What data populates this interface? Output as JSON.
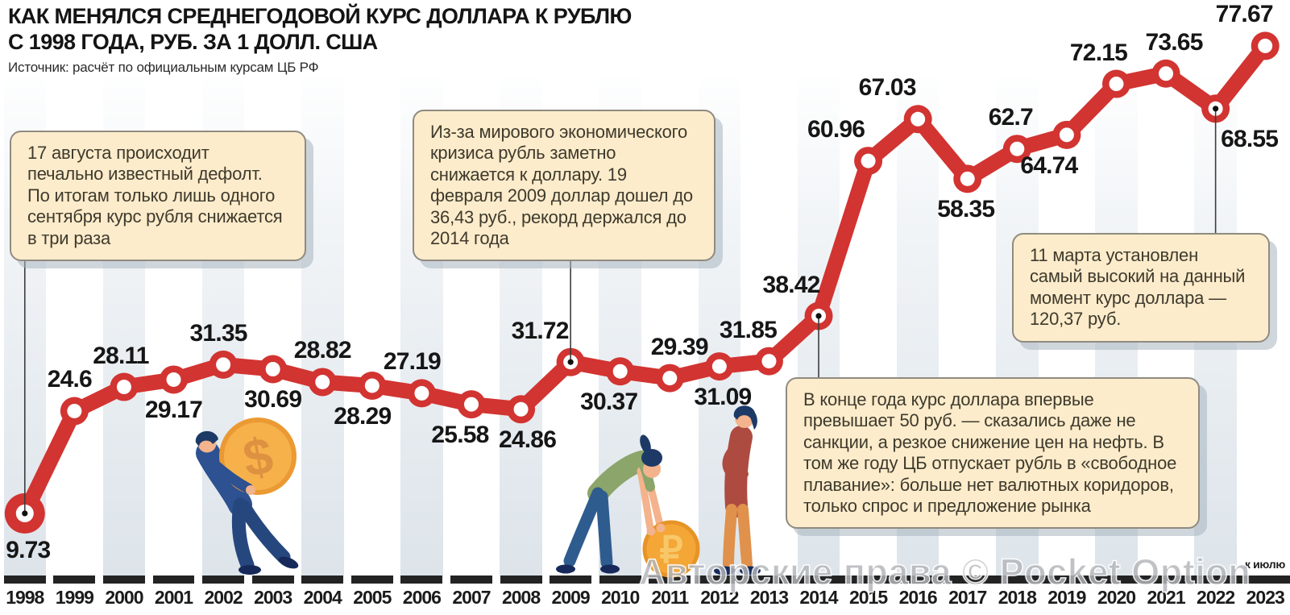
{
  "header": {
    "title_line1": "КАК МЕНЯЛСЯ СРЕДНЕГОДОВОЙ КУРС ДОЛЛАРА К РУБЛЮ",
    "title_line2": "С 1998 ГОДА, РУБ. ЗА 1 ДОЛЛ. США",
    "source": "Источник: расчёт по официальным курсам ЦБ РФ"
  },
  "chart_data": {
    "type": "line",
    "title": "Как менялся среднегодовой курс доллара к рублю с 1998 года, руб. за 1 долл. США",
    "categories": [
      "1998",
      "1999",
      "2000",
      "2001",
      "2002",
      "2003",
      "2004",
      "2005",
      "2006",
      "2007",
      "2008",
      "2009",
      "2010",
      "2011",
      "2012",
      "2013",
      "2014",
      "2015",
      "2016",
      "2017",
      "2018",
      "2019",
      "2020",
      "2021",
      "2022",
      "2023"
    ],
    "values": [
      9.73,
      24.6,
      28.11,
      29.17,
      31.35,
      30.69,
      28.82,
      28.29,
      27.19,
      25.58,
      24.86,
      31.72,
      30.37,
      29.39,
      31.09,
      31.85,
      38.42,
      60.96,
      67.03,
      58.35,
      62.7,
      64.74,
      72.15,
      73.65,
      68.55,
      77.67
    ],
    "labels": [
      "9.73",
      "24.6",
      "28.11",
      "29.17",
      "31.35",
      "30.69",
      "28.82",
      "28.29",
      "27.19",
      "25.58",
      "24.86",
      "31.72",
      "30.37",
      "29.39",
      "31.09",
      "31.85",
      "38.42",
      "60.96",
      "67.03",
      "58.35",
      "62.7",
      "64.74",
      "72.15",
      "73.65",
      "68.55",
      "77.67"
    ],
    "label_sides": [
      "below",
      "above",
      "above",
      "below",
      "above",
      "below",
      "above",
      "below",
      "above",
      "below",
      "below",
      "above",
      "below",
      "above",
      "below",
      "above",
      "above",
      "above",
      "above",
      "below",
      "above",
      "below",
      "above",
      "above",
      "below",
      "above"
    ],
    "label_dx": [
      4,
      -6,
      -4,
      0,
      -6,
      0,
      0,
      -12,
      -12,
      -14,
      8,
      -38,
      -14,
      12,
      4,
      -26,
      -34,
      -40,
      -38,
      -2,
      -8,
      -22,
      -22,
      10,
      42,
      -26
    ],
    "xlabel": "",
    "ylabel": "руб. за 1 долл. США",
    "ylim": [
      0,
      84
    ],
    "grid": false,
    "legend": "none",
    "last_point_note": "к июлю",
    "series_color": "#d23431"
  },
  "annotations": [
    {
      "text": "17 августа происходит печально известный дефолт. По итогам только лишь одного сентября курс рубля снижается в три раза",
      "connects_to_year": "1998"
    },
    {
      "text": "Из-за мирового экономического кризиса рубль заметно снижается к доллару. 19 февраля 2009 доллар дошел до 36,43 руб., рекорд держался до 2014 года",
      "connects_to_year": "2009"
    },
    {
      "text": "11 марта установлен самый высокий на данный момент курс доллара — 120,37 руб.",
      "connects_to_year": "2022"
    },
    {
      "text": "В конце года курс доллара впервые превышает 50 руб. — сказались даже не санкции, а резкое снижение цен на нефть. В том же году ЦБ отпускает рубль в «свободное плавание»: больше нет валютных коридоров, только спрос и предложение рынка",
      "connects_to_year": "2014"
    }
  ],
  "figures": {
    "dollar_coin_symbol": "$",
    "ruble_coin_symbol": "₽"
  },
  "watermark": "Авторские права © Pocket Option",
  "colors": {
    "accent_red": "#d23431",
    "stripe": "#dde4ea",
    "axis_black": "#232323",
    "note_fill": "#fceccb",
    "note_border": "#8f8b80",
    "note_text": "#3f3a2d",
    "connector": "#3c3c3c",
    "coin_gold": "#f5ae45",
    "coin_edge": "#eb9a33",
    "coin_symbol": "#de9140",
    "navy_hair": "#1d3a66",
    "suit_blue": "#2d5191",
    "suit_blue_dark": "#26477e",
    "skin": "#f3b38c",
    "green_top": "#8ba56a",
    "jeans_blue": "#2e5c8f",
    "maroon_jacket": "#ad4b41",
    "orange_pants": "#e0914c",
    "shoe_navy": "#16295a"
  }
}
